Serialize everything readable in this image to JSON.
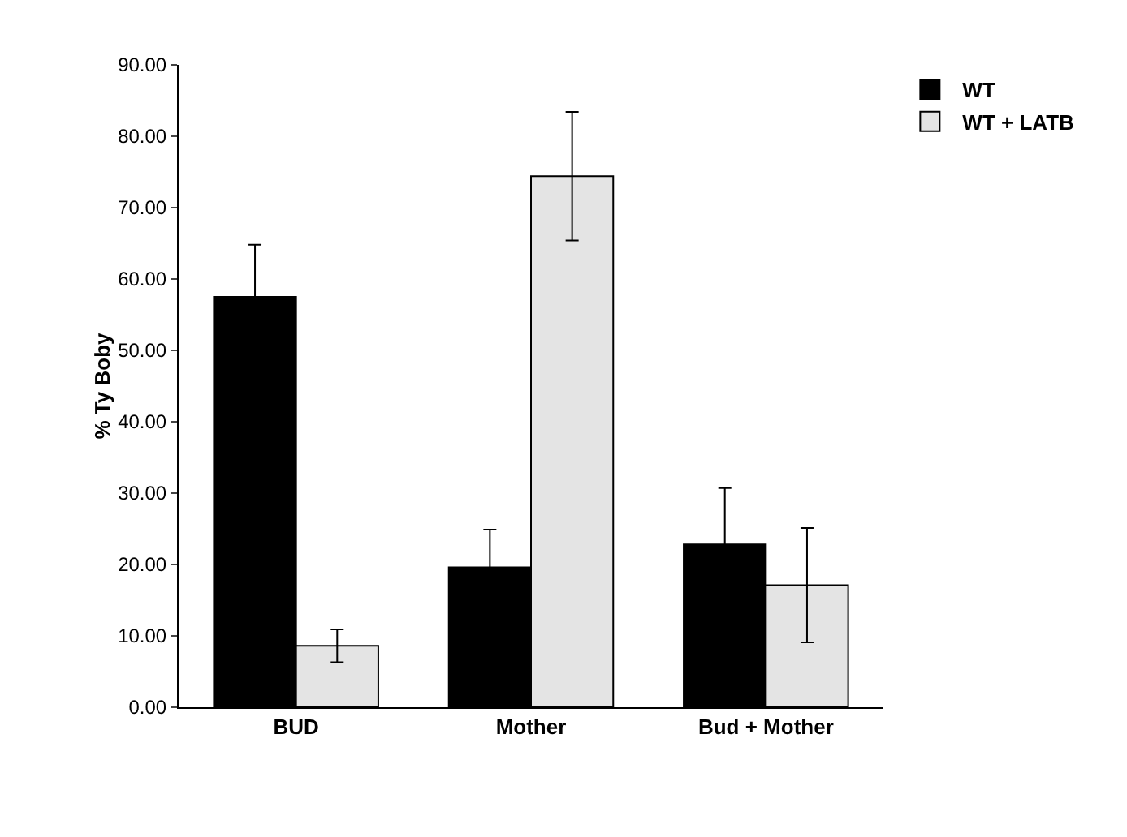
{
  "chart_data": {
    "type": "bar",
    "ylabel": "% Ty Boby",
    "categories": [
      "BUD",
      "Mother",
      "Bud + Mother"
    ],
    "series": [
      {
        "name": "WT",
        "color": "#000000",
        "values": [
          57.5,
          19.6,
          22.8
        ],
        "errors": [
          7.3,
          5.3,
          7.9
        ]
      },
      {
        "name": "WT + LATB",
        "color": "#e4e4e4",
        "values": [
          8.6,
          74.4,
          17.1
        ],
        "errors": [
          2.3,
          9.0,
          8.0
        ]
      }
    ],
    "ylim": [
      0,
      90
    ],
    "yticks": [
      {
        "value": 0,
        "label": "0.00"
      },
      {
        "value": 10,
        "label": "10.00"
      },
      {
        "value": 20,
        "label": "20.00"
      },
      {
        "value": 30,
        "label": "30.00"
      },
      {
        "value": 40,
        "label": "40.00"
      },
      {
        "value": 50,
        "label": "50.00"
      },
      {
        "value": 60,
        "label": "60.00"
      },
      {
        "value": 70,
        "label": "70.00"
      },
      {
        "value": 80,
        "label": "80.00"
      },
      {
        "value": 90,
        "label": "90.00"
      }
    ],
    "grid": false,
    "legend": "top right"
  }
}
